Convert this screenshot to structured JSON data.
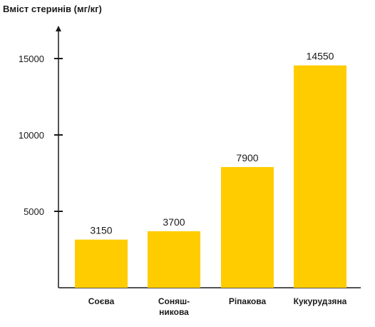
{
  "chart_data": {
    "type": "bar",
    "ylabel": "Вміст стеринів (мг/кг)",
    "xlabel": "",
    "title": "",
    "categories": [
      [
        "Соєва"
      ],
      [
        "Соняш-",
        "никова"
      ],
      [
        "Ріпакова"
      ],
      [
        "Кукурудзяна"
      ]
    ],
    "values": [
      3150,
      3700,
      7900,
      14550
    ],
    "yticks": [
      5000,
      10000,
      15000
    ],
    "ylim": [
      0,
      16500
    ],
    "bar_color": "#FFCC00",
    "axis_color": "#1a1a1a",
    "grid": false,
    "legend": "none"
  }
}
